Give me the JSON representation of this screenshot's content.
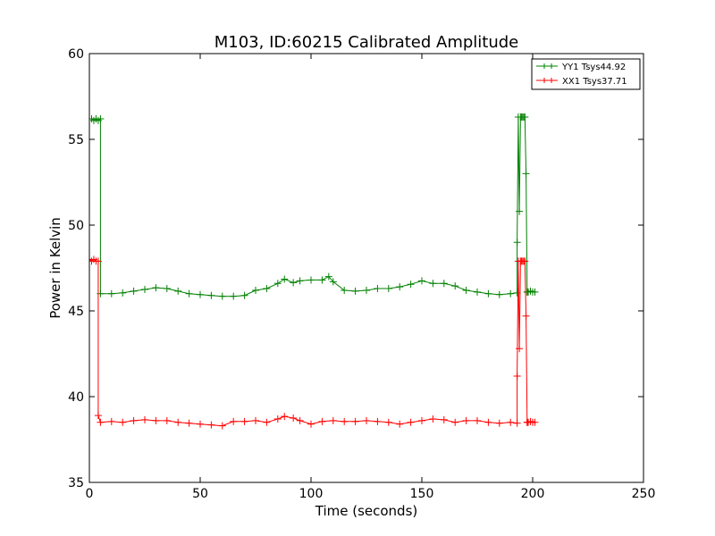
{
  "chart_data": {
    "type": "line",
    "title": "M103, ID:60215 Calibrated Amplitude",
    "xlabel": "Time (seconds)",
    "ylabel": "Power in Kelvin",
    "xlim": [
      0,
      250
    ],
    "ylim": [
      35,
      60
    ],
    "xticks": [
      0,
      50,
      100,
      150,
      200,
      250
    ],
    "yticks": [
      35,
      40,
      45,
      50,
      55,
      60
    ],
    "grid": false,
    "legend_position": "top-right",
    "marker": "plus",
    "series": [
      {
        "name": "YY1 Tsys44.92",
        "color": "#008000",
        "segments": [
          {
            "x": [
              0,
              1,
              2,
              3,
              4,
              5
            ],
            "y": [
              56.2,
              56.2,
              56.1,
              56.2,
              56.1,
              56.2
            ]
          },
          {
            "x": [
              5,
              10,
              15,
              20,
              25,
              30,
              35,
              40,
              45,
              50,
              55,
              60,
              65,
              70,
              75,
              80,
              85,
              88,
              92,
              95,
              100,
              105,
              108,
              110,
              115,
              120,
              125,
              130,
              135,
              140,
              145,
              150,
              155,
              160,
              165,
              170,
              175,
              180,
              185,
              190,
              193
            ],
            "y": [
              46.0,
              46.0,
              46.05,
              46.15,
              46.25,
              46.35,
              46.3,
              46.15,
              46.0,
              45.95,
              45.9,
              45.85,
              45.85,
              45.9,
              46.2,
              46.3,
              46.6,
              46.85,
              46.65,
              46.75,
              46.8,
              46.8,
              47.0,
              46.7,
              46.2,
              46.15,
              46.2,
              46.3,
              46.3,
              46.4,
              46.55,
              46.75,
              46.6,
              46.6,
              46.45,
              46.2,
              46.1,
              46.0,
              45.95,
              46.0,
              46.05
            ]
          },
          {
            "x": [
              193,
              193.5,
              194,
              194.5,
              195,
              195.5,
              196,
              196.5,
              197,
              197.5
            ],
            "y": [
              49.0,
              56.3,
              50.8,
              56.3,
              56.3,
              56.3,
              56.3,
              56.3,
              53.0,
              46.1
            ]
          },
          {
            "x": [
              197.5,
              198,
              199,
              200,
              201
            ],
            "y": [
              46.1,
              46.1,
              46.15,
              46.1,
              46.1
            ]
          }
        ]
      },
      {
        "name": "XX1 Tsys37.71",
        "color": "#ff0000",
        "segments": [
          {
            "x": [
              0,
              1,
              2,
              3,
              4
            ],
            "y": [
              48.0,
              47.9,
              48.0,
              47.9,
              47.9
            ]
          },
          {
            "x": [
              4,
              5,
              10,
              15,
              20,
              25,
              30,
              35,
              40,
              45,
              50,
              55,
              60,
              65,
              70,
              75,
              80,
              85,
              88,
              92,
              95,
              100,
              105,
              110,
              115,
              120,
              125,
              130,
              135,
              140,
              145,
              150,
              155,
              160,
              165,
              170,
              175,
              180,
              185,
              190,
              193
            ],
            "y": [
              38.9,
              38.5,
              38.55,
              38.5,
              38.6,
              38.65,
              38.6,
              38.6,
              38.5,
              38.45,
              38.4,
              38.35,
              38.3,
              38.55,
              38.55,
              38.6,
              38.5,
              38.7,
              38.85,
              38.75,
              38.6,
              38.4,
              38.55,
              38.6,
              38.55,
              38.55,
              38.6,
              38.55,
              38.5,
              38.4,
              38.5,
              38.6,
              38.7,
              38.65,
              38.5,
              38.6,
              38.6,
              38.5,
              38.45,
              38.5,
              38.45
            ]
          },
          {
            "x": [
              193,
              193.5,
              194,
              194.5,
              195,
              195.5,
              196,
              196.5,
              197,
              197.5
            ],
            "y": [
              41.2,
              47.9,
              42.8,
              47.9,
              47.9,
              47.9,
              47.9,
              47.9,
              44.7,
              38.5
            ]
          },
          {
            "x": [
              197.5,
              198,
              199,
              200,
              201
            ],
            "y": [
              38.5,
              38.5,
              38.55,
              38.5,
              38.5
            ]
          }
        ]
      }
    ]
  }
}
